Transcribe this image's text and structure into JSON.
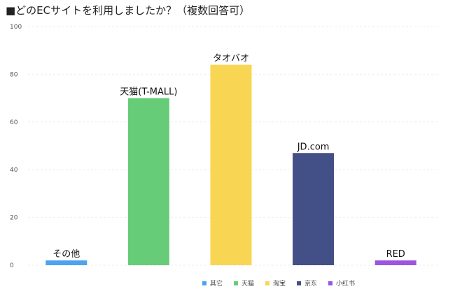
{
  "chart_data": {
    "type": "bar",
    "title": "■どのECサイトを利用しましたか？（複数回答可）",
    "categories": [
      "その他",
      "天猫(T-MALL)",
      "タオバオ",
      "JD.com",
      "RED"
    ],
    "values": [
      2,
      70,
      84,
      47,
      2
    ],
    "series_legend": [
      "其它",
      "天猫",
      "淘宝",
      "京东",
      "小红书"
    ],
    "colors": [
      "#4da3f0",
      "#66cc77",
      "#f9d554",
      "#434f87",
      "#9b55e0"
    ],
    "yticks": [
      "0",
      "20",
      "40",
      "60",
      "80",
      "100"
    ],
    "ylim": [
      0,
      100
    ],
    "grid": true,
    "legend_position": "bottom"
  }
}
